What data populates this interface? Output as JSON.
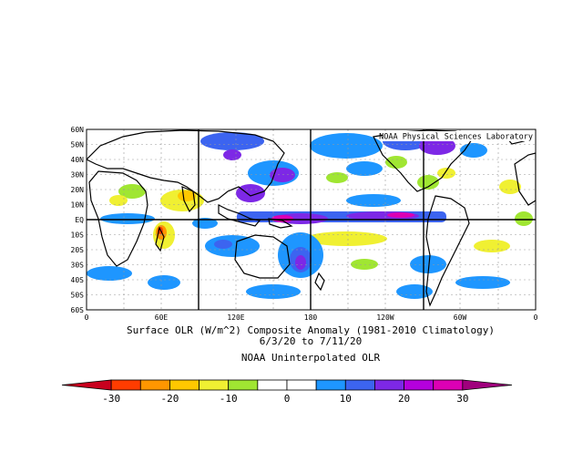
{
  "map": {
    "credit": "NOAA Physical Sciences Laboratory",
    "lat_labels": [
      "60N",
      "50N",
      "40N",
      "30N",
      "20N",
      "10N",
      "EQ",
      "10S",
      "20S",
      "30S",
      "40S",
      "50S",
      "60S"
    ],
    "lon_labels": [
      "0",
      "60E",
      "120E",
      "180",
      "120W",
      "60W",
      "0"
    ]
  },
  "caption": {
    "line1": "Surface OLR (W/m^2) Composite Anomaly (1981-2010 Climatology)",
    "line2": "6/3/20  to 7/11/20",
    "line3": "NOAA Uninterpolated OLR"
  },
  "colorbar": {
    "colors": [
      "#c8001e",
      "#ff3c00",
      "#ff9600",
      "#ffc800",
      "#f0f032",
      "#a0e632",
      "#ffffff",
      "#ffffff",
      "#1e96ff",
      "#3c64f0",
      "#7d28e6",
      "#b400dc",
      "#dc00b4",
      "#a0007d"
    ],
    "ticks": [
      "-30",
      "-20",
      "-10",
      "0",
      "10",
      "20",
      "30"
    ]
  }
}
